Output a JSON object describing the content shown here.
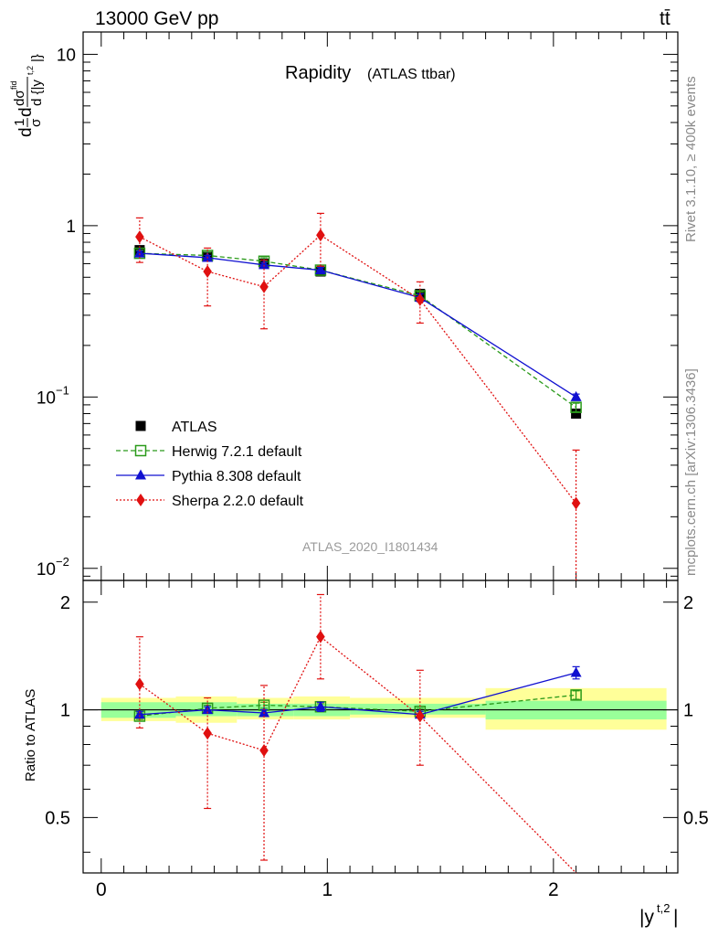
{
  "header": {
    "energy": "13000 GeV pp",
    "process": "tt̄"
  },
  "side": {
    "rivet": "Rivet 3.1.10, ≥ 400k events",
    "mcplots": "mcplots.cern.ch [arXiv:1306.3436]"
  },
  "watermark": "ATLAS_2020_I1801434",
  "colors": {
    "data": "#000000",
    "herwig": "#2a9a1a",
    "pythia": "#1010d0",
    "sherpa": "#e01010",
    "band_inner": "#99ff99",
    "band_outer": "#ffff99"
  },
  "chart_data": [
    {
      "type": "line",
      "title": "Rapidity",
      "subtitle": "(ATLAS ttbar)",
      "xlabel": "",
      "ylabel_main": "d/σ dσ/d{|y^{t,2}|}",
      "xlim": [
        -0.08,
        2.55
      ],
      "ylim": [
        0.0085,
        13.5
      ],
      "log_y": true,
      "ytick_labels": [
        "10^-2",
        "10^-1",
        "1",
        "10"
      ],
      "legend_position": "lower-left",
      "x": [
        0.17,
        0.47,
        0.72,
        0.97,
        1.41,
        2.1
      ],
      "series": [
        {
          "name": "ATLAS",
          "marker": "square-filled",
          "line": "none",
          "values": [
            0.72,
            0.66,
            0.6,
            0.54,
            0.4,
            0.08
          ]
        },
        {
          "name": "Herwig 7.2.1 default",
          "marker": "square-open",
          "line": "dashed",
          "values": [
            0.69,
            0.67,
            0.62,
            0.55,
            0.39,
            0.087
          ],
          "err": [
            0.03,
            0.03,
            0.03,
            0.02,
            0.02,
            0.005
          ]
        },
        {
          "name": "Pythia 8.308 default",
          "marker": "triangle-filled",
          "line": "solid",
          "values": [
            0.69,
            0.65,
            0.59,
            0.55,
            0.38,
            0.1
          ],
          "err": [
            0.02,
            0.02,
            0.02,
            0.02,
            0.02,
            0.004
          ]
        },
        {
          "name": "Sherpa 2.2.0 default",
          "marker": "diamond-filled",
          "line": "dotted",
          "values": [
            0.86,
            0.54,
            0.44,
            0.88,
            0.37,
            0.024
          ],
          "err_lo": [
            0.25,
            0.2,
            0.19,
            0.3,
            0.1,
            0.018
          ],
          "err_hi": [
            0.25,
            0.2,
            0.19,
            0.3,
            0.1,
            0.025
          ]
        }
      ]
    },
    {
      "type": "line",
      "title": "",
      "xlabel": "|y^{t,2}|",
      "ylabel": "Ratio to ATLAS",
      "xlim": [
        -0.08,
        2.55
      ],
      "ylim": [
        0.35,
        2.3
      ],
      "log_y": true,
      "ytick_labels": [
        "0.5",
        "1",
        "2"
      ],
      "xtick_labels": [
        "0",
        "1",
        "2"
      ],
      "bands": [
        {
          "x0": 0.0,
          "x1": 0.33,
          "inner": [
            0.95,
            1.05
          ],
          "outer": [
            0.93,
            1.08
          ]
        },
        {
          "x0": 0.33,
          "x1": 0.6,
          "inner": [
            0.96,
            1.05
          ],
          "outer": [
            0.92,
            1.09
          ]
        },
        {
          "x0": 0.6,
          "x1": 0.85,
          "inner": [
            0.96,
            1.04
          ],
          "outer": [
            0.94,
            1.08
          ]
        },
        {
          "x0": 0.85,
          "x1": 1.1,
          "inner": [
            0.96,
            1.04
          ],
          "outer": [
            0.94,
            1.09
          ]
        },
        {
          "x0": 1.1,
          "x1": 1.7,
          "inner": [
            0.97,
            1.04
          ],
          "outer": [
            0.95,
            1.08
          ]
        },
        {
          "x0": 1.7,
          "x1": 2.5,
          "inner": [
            0.94,
            1.06
          ],
          "outer": [
            0.88,
            1.15
          ]
        }
      ],
      "x": [
        0.17,
        0.47,
        0.72,
        0.97,
        1.41,
        2.1
      ],
      "series": [
        {
          "name": "Herwig 7.2.1 default",
          "marker": "square-open",
          "line": "dashed",
          "values": [
            0.96,
            1.01,
            1.03,
            1.02,
            0.99,
            1.1
          ],
          "err": [
            0.02,
            0.02,
            0.02,
            0.02,
            0.02,
            0.03
          ]
        },
        {
          "name": "Pythia 8.308 default",
          "marker": "triangle-filled",
          "line": "solid",
          "values": [
            0.97,
            1.0,
            0.98,
            1.02,
            0.97,
            1.27
          ],
          "err": [
            0.02,
            0.02,
            0.02,
            0.03,
            0.02,
            0.05
          ]
        },
        {
          "name": "Sherpa 2.2.0 default",
          "marker": "diamond-filled",
          "line": "dotted",
          "values": [
            1.18,
            0.86,
            0.77,
            1.6,
            0.96,
            0.3
          ],
          "err_lo": [
            0.29,
            0.33,
            0.39,
            0.38,
            0.26,
            0.0
          ],
          "err_hi": [
            0.42,
            0.22,
            0.4,
            0.5,
            0.33,
            0.0
          ]
        }
      ]
    }
  ]
}
